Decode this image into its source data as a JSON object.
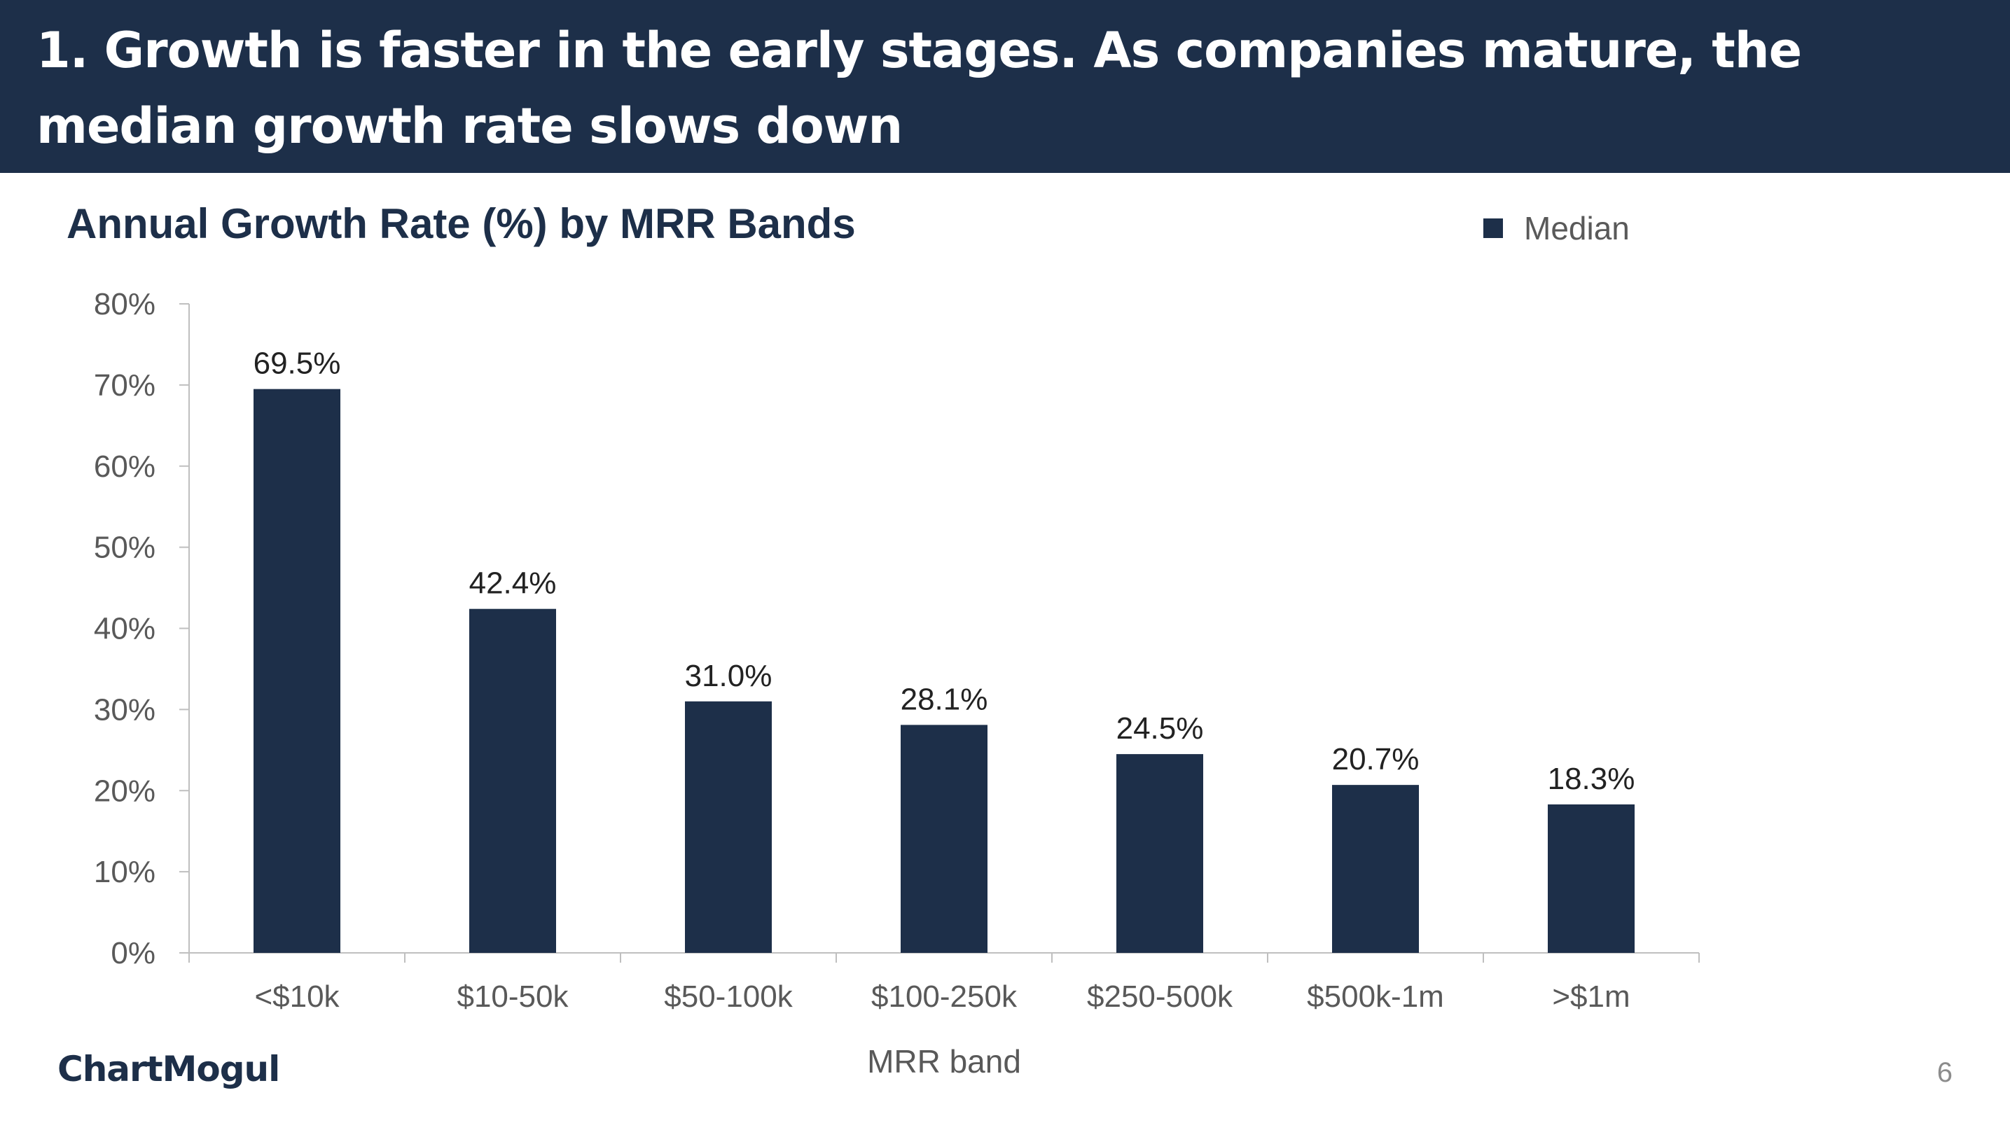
{
  "slide": {
    "title": "1. Growth is faster in the early stages. As companies mature, the median growth rate slows down",
    "logo_text": "ChartMogul",
    "page_number": "6"
  },
  "colors": {
    "header_bg": "#1d2f49",
    "bar": "#1d2f49",
    "axis_text": "#595959",
    "label_text": "#222222"
  },
  "chart_data": {
    "type": "bar",
    "title": "Annual Growth Rate (%) by MRR Bands",
    "xlabel": "MRR band",
    "ylabel": "",
    "categories": [
      "<$10k",
      "$10-50k",
      "$50-100k",
      "$100-250k",
      "$250-500k",
      "$500k-1m",
      ">$1m"
    ],
    "series": [
      {
        "name": "Median",
        "values": [
          69.5,
          42.4,
          31.0,
          28.1,
          24.5,
          20.7,
          18.3
        ],
        "data_labels": [
          "69.5%",
          "42.4%",
          "31.0%",
          "28.1%",
          "24.5%",
          "20.7%",
          "18.3%"
        ]
      }
    ],
    "ylim": [
      0,
      80
    ],
    "yticks": [
      0,
      10,
      20,
      30,
      40,
      50,
      60,
      70,
      80
    ],
    "ytick_labels": [
      "0%",
      "10%",
      "20%",
      "30%",
      "40%",
      "50%",
      "60%",
      "70%",
      "80%"
    ],
    "grid": false,
    "legend_position": "top-right"
  }
}
